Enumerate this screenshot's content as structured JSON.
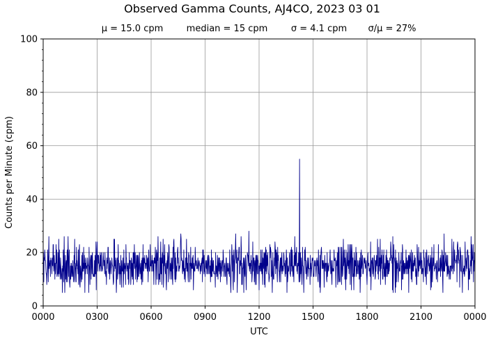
{
  "chart_data": {
    "type": "line",
    "title": "Observed Gamma Counts, AJ4CO, 2023 03 01",
    "stats": [
      "μ = 15.0 cpm",
      "median = 15 cpm",
      "σ = 4.1 cpm",
      "σ/μ = 27%"
    ],
    "xlabel": "UTC",
    "ylabel": "Counts per Minute (cpm)",
    "x_ticks": [
      "0000",
      "0300",
      "0600",
      "0900",
      "1200",
      "1500",
      "1800",
      "2100",
      "0000"
    ],
    "y_ticks": [
      "0",
      "20",
      "40",
      "60",
      "80",
      "100"
    ],
    "ylim": [
      0,
      100
    ],
    "xlim_minutes": [
      0,
      1440
    ],
    "grid": true,
    "line_color": "#00008b",
    "series": [
      {
        "sample_interval_minutes": 1,
        "mean": 15.0,
        "median": 15,
        "std": 4.1,
        "min": 5,
        "max": 55,
        "peak_minute": 855,
        "peak_value": 55
      }
    ]
  }
}
